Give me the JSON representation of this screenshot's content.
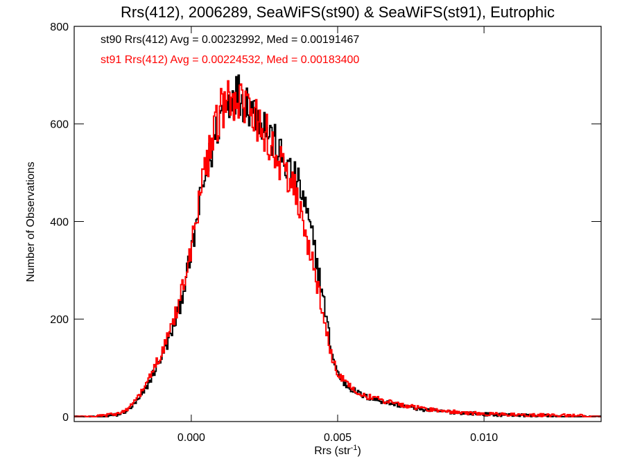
{
  "chart_data": {
    "type": "line",
    "title": "Rrs(412), 2006289, SeaWiFS(st90) & SeaWiFS(st91), Eutrophic",
    "xlabel_main": "Rrs (str",
    "xlabel_sup": "-1",
    "xlabel_end": ")",
    "ylabel": "Number of Observations",
    "xlim": [
      -0.004,
      0.014
    ],
    "ylim": [
      -10,
      800
    ],
    "xticks": [
      0.0,
      0.005,
      0.01
    ],
    "xtick_labels": [
      "0.000",
      "0.005",
      "0.010"
    ],
    "yticks": [
      0,
      200,
      400,
      600,
      800
    ],
    "ytick_labels": [
      "0",
      "200",
      "400",
      "600",
      "800"
    ],
    "grid": false,
    "legend_position": "top-left",
    "series": [
      {
        "name": "st90",
        "legend": "st90 Rrs(412) Avg = 0.00232992, Med = 0.00191467",
        "color": "#000000",
        "points": [
          [
            -0.004,
            0
          ],
          [
            -0.003,
            1
          ],
          [
            -0.0025,
            4
          ],
          [
            -0.0022,
            12
          ],
          [
            -0.002,
            22
          ],
          [
            -0.0018,
            35
          ],
          [
            -0.0016,
            52
          ],
          [
            -0.0014,
            75
          ],
          [
            -0.0012,
            100
          ],
          [
            -0.001,
            125
          ],
          [
            -0.0008,
            152
          ],
          [
            -0.0006,
            185
          ],
          [
            -0.0004,
            225
          ],
          [
            -0.0002,
            280
          ],
          [
            0.0,
            330
          ],
          [
            0.0002,
            405
          ],
          [
            0.0004,
            470
          ],
          [
            0.0006,
            520
          ],
          [
            0.0008,
            568
          ],
          [
            0.001,
            618
          ],
          [
            0.0012,
            640
          ],
          [
            0.0014,
            660
          ],
          [
            0.0016,
            660
          ],
          [
            0.0018,
            652
          ],
          [
            0.002,
            642
          ],
          [
            0.0022,
            625
          ],
          [
            0.0024,
            610
          ],
          [
            0.0026,
            588
          ],
          [
            0.0028,
            565
          ],
          [
            0.003,
            540
          ],
          [
            0.0032,
            518
          ],
          [
            0.0034,
            500
          ],
          [
            0.0036,
            482
          ],
          [
            0.0038,
            455
          ],
          [
            0.004,
            400
          ],
          [
            0.0042,
            350
          ],
          [
            0.0044,
            280
          ],
          [
            0.0046,
            210
          ],
          [
            0.0048,
            130
          ],
          [
            0.005,
            90
          ],
          [
            0.0052,
            70
          ],
          [
            0.0054,
            60
          ],
          [
            0.0056,
            52
          ],
          [
            0.0058,
            45
          ],
          [
            0.006,
            40
          ],
          [
            0.0065,
            32
          ],
          [
            0.007,
            25
          ],
          [
            0.0075,
            19
          ],
          [
            0.008,
            14
          ],
          [
            0.0085,
            11
          ],
          [
            0.009,
            9
          ],
          [
            0.0095,
            7
          ],
          [
            0.01,
            5
          ],
          [
            0.011,
            3
          ],
          [
            0.012,
            2
          ],
          [
            0.013,
            1
          ],
          [
            0.014,
            1
          ]
        ]
      },
      {
        "name": "st91",
        "legend": "st91 Rrs(412) Avg = 0.00224532, Med = 0.00183400",
        "color": "#ff0000",
        "points": [
          [
            -0.004,
            0
          ],
          [
            -0.003,
            2
          ],
          [
            -0.0025,
            6
          ],
          [
            -0.0022,
            15
          ],
          [
            -0.002,
            27
          ],
          [
            -0.0018,
            42
          ],
          [
            -0.0016,
            60
          ],
          [
            -0.0014,
            82
          ],
          [
            -0.0012,
            108
          ],
          [
            -0.001,
            135
          ],
          [
            -0.0008,
            165
          ],
          [
            -0.0006,
            200
          ],
          [
            -0.0004,
            240
          ],
          [
            -0.0002,
            295
          ],
          [
            0.0,
            350
          ],
          [
            0.0002,
            420
          ],
          [
            0.0004,
            480
          ],
          [
            0.0006,
            535
          ],
          [
            0.0008,
            580
          ],
          [
            0.001,
            625
          ],
          [
            0.0012,
            640
          ],
          [
            0.0014,
            645
          ],
          [
            0.0016,
            640
          ],
          [
            0.0018,
            630
          ],
          [
            0.002,
            620
          ],
          [
            0.0022,
            608
          ],
          [
            0.0024,
            592
          ],
          [
            0.0026,
            575
          ],
          [
            0.0028,
            550
          ],
          [
            0.003,
            525
          ],
          [
            0.0032,
            505
          ],
          [
            0.0034,
            485
          ],
          [
            0.0036,
            455
          ],
          [
            0.0038,
            400
          ],
          [
            0.004,
            345
          ],
          [
            0.0042,
            300
          ],
          [
            0.0044,
            240
          ],
          [
            0.0046,
            180
          ],
          [
            0.0048,
            120
          ],
          [
            0.005,
            90
          ],
          [
            0.0052,
            75
          ],
          [
            0.0054,
            64
          ],
          [
            0.0056,
            55
          ],
          [
            0.0058,
            48
          ],
          [
            0.006,
            42
          ],
          [
            0.0065,
            34
          ],
          [
            0.007,
            27
          ],
          [
            0.0075,
            21
          ],
          [
            0.008,
            16
          ],
          [
            0.0085,
            12
          ],
          [
            0.009,
            10
          ],
          [
            0.0095,
            8
          ],
          [
            0.01,
            6
          ],
          [
            0.011,
            4
          ],
          [
            0.012,
            3
          ],
          [
            0.013,
            2
          ],
          [
            0.014,
            1
          ]
        ]
      }
    ]
  }
}
